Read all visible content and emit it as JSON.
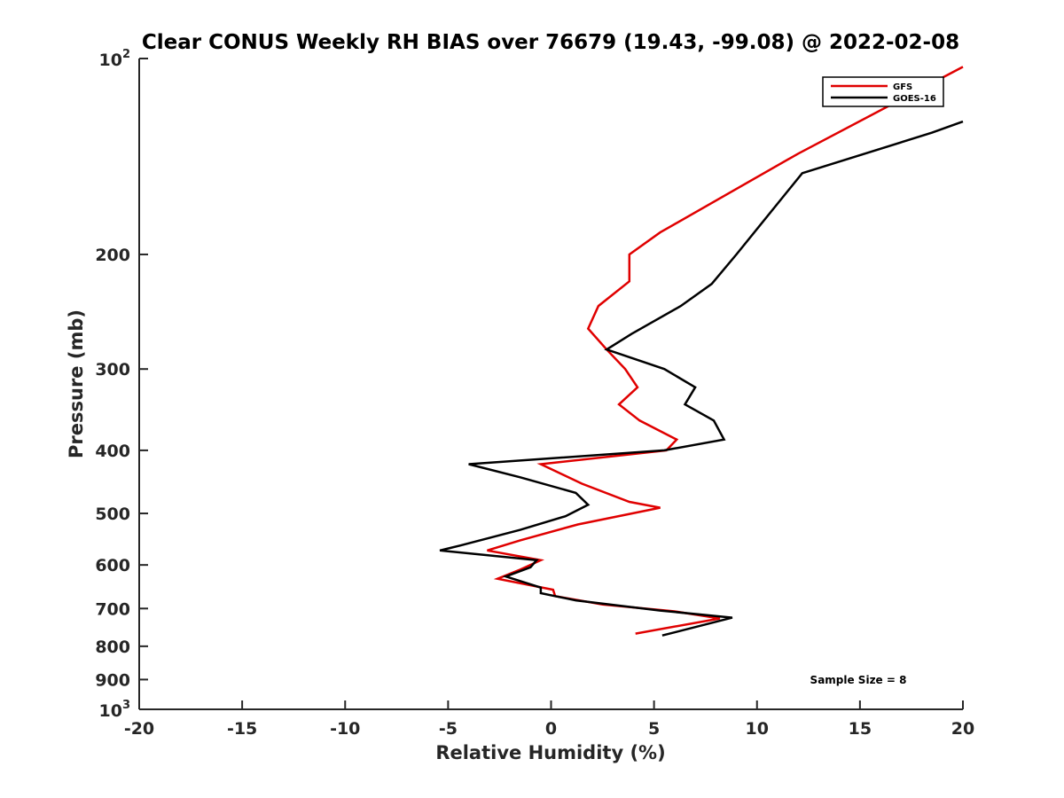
{
  "chart_data": {
    "type": "line",
    "title": "Clear CONUS Weekly RH BIAS over 76679 (19.43, -99.08) @ 2022-02-08",
    "xlabel": "Relative Humidity (%)",
    "ylabel": "Pressure (mb)",
    "xlim": [
      -20,
      20
    ],
    "ylim": [
      1000,
      100
    ],
    "y_scale": "log",
    "y_reversed": true,
    "grid": false,
    "legend_position": "top-right",
    "annotation": "Sample Size = 8",
    "x_ticks": [
      {
        "value": -20,
        "label": "-20"
      },
      {
        "value": -15,
        "label": "-15"
      },
      {
        "value": -10,
        "label": "-10"
      },
      {
        "value": -5,
        "label": "-5"
      },
      {
        "value": 0,
        "label": "0"
      },
      {
        "value": 5,
        "label": "5"
      },
      {
        "value": 10,
        "label": "10"
      },
      {
        "value": 15,
        "label": "15"
      },
      {
        "value": 20,
        "label": "20"
      }
    ],
    "y_ticks": [
      {
        "value": 100,
        "base": "10",
        "exp": "2"
      },
      {
        "value": 200,
        "label": "200"
      },
      {
        "value": 300,
        "label": "300"
      },
      {
        "value": 400,
        "label": "400"
      },
      {
        "value": 500,
        "label": "500"
      },
      {
        "value": 600,
        "label": "600"
      },
      {
        "value": 700,
        "label": "700"
      },
      {
        "value": 800,
        "label": "800"
      },
      {
        "value": 900,
        "label": "900"
      },
      {
        "value": 1000,
        "base": "10",
        "exp": "3"
      }
    ],
    "series": [
      {
        "name": "GFS",
        "color": "#e00000",
        "points": [
          [
            20.0,
            103
          ],
          [
            12.0,
            140
          ],
          [
            5.3,
            185
          ],
          [
            3.8,
            200
          ],
          [
            3.8,
            220
          ],
          [
            2.3,
            240
          ],
          [
            1.8,
            260
          ],
          [
            2.7,
            280
          ],
          [
            3.6,
            300
          ],
          [
            4.2,
            320
          ],
          [
            3.3,
            340
          ],
          [
            4.3,
            360
          ],
          [
            6.1,
            385
          ],
          [
            5.6,
            400
          ],
          [
            -0.5,
            420
          ],
          [
            1.5,
            450
          ],
          [
            3.8,
            480
          ],
          [
            5.3,
            490
          ],
          [
            1.3,
            520
          ],
          [
            -1.5,
            550
          ],
          [
            -3.1,
            570
          ],
          [
            -0.5,
            590
          ],
          [
            -1.5,
            610
          ],
          [
            -2.6,
            630
          ],
          [
            0.1,
            655
          ],
          [
            0.2,
            670
          ],
          [
            2.5,
            690
          ],
          [
            6.0,
            707
          ],
          [
            8.2,
            725
          ],
          [
            4.1,
            765
          ]
        ]
      },
      {
        "name": "GOES-16",
        "color": "#000000",
        "points": [
          [
            20.0,
            125
          ],
          [
            18.5,
            130
          ],
          [
            12.2,
            150
          ],
          [
            9.0,
            200
          ],
          [
            7.8,
            222
          ],
          [
            6.3,
            240
          ],
          [
            3.9,
            265
          ],
          [
            2.7,
            280
          ],
          [
            5.5,
            300
          ],
          [
            7.0,
            320
          ],
          [
            6.5,
            340
          ],
          [
            7.9,
            360
          ],
          [
            8.4,
            385
          ],
          [
            5.5,
            400
          ],
          [
            -4.0,
            420
          ],
          [
            -1.5,
            440
          ],
          [
            1.2,
            465
          ],
          [
            1.8,
            485
          ],
          [
            0.7,
            505
          ],
          [
            -1.5,
            530
          ],
          [
            -4.4,
            560
          ],
          [
            -5.4,
            570
          ],
          [
            -0.7,
            590
          ],
          [
            -1.0,
            605
          ],
          [
            -2.2,
            625
          ],
          [
            -0.5,
            650
          ],
          [
            -0.5,
            663
          ],
          [
            1.2,
            680
          ],
          [
            5.3,
            705
          ],
          [
            8.8,
            723
          ],
          [
            5.4,
            770
          ]
        ]
      }
    ]
  }
}
